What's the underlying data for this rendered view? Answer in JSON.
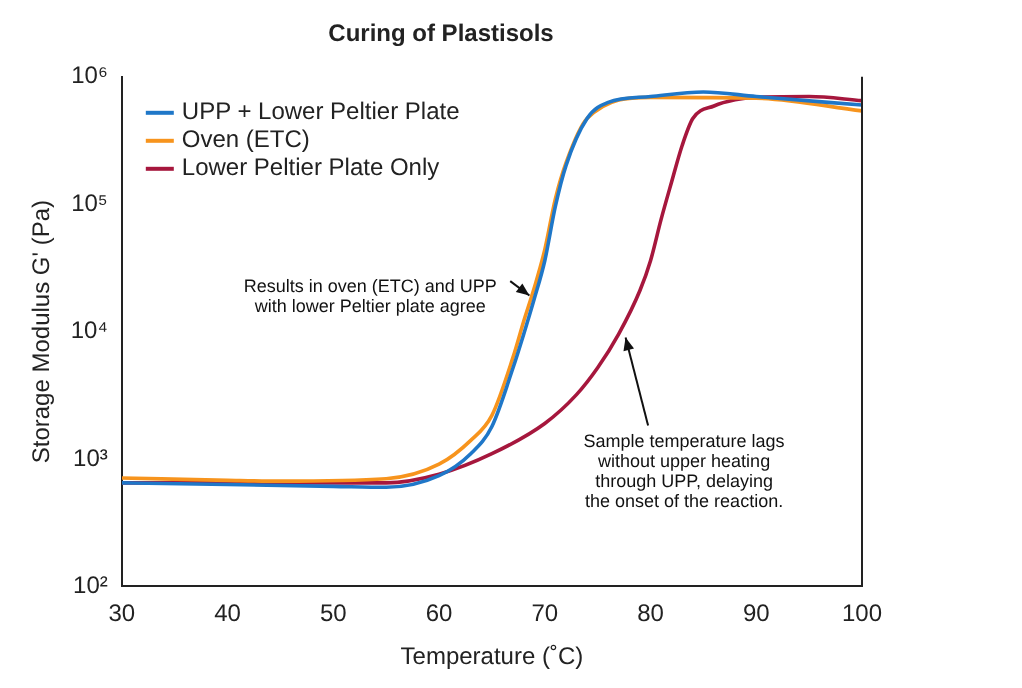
{
  "chart_data": {
    "type": "line",
    "title": "Curing of Plastisols",
    "xlabel": "Temperature (˚C)",
    "ylabel": "Storage Modulus G' (Pa)",
    "log": "y",
    "grid": false,
    "legend": "top left",
    "marker": "none",
    "line_style": "solid",
    "xlim": [
      30,
      100
    ],
    "xticks": [
      30,
      40,
      50,
      60,
      70,
      80,
      90,
      100
    ],
    "ylim": [
      100,
      1000000
    ],
    "yticks": [
      {
        "value": 100,
        "label": "10²"
      },
      {
        "value": 1000,
        "label": "10³"
      },
      {
        "value": 10000,
        "label": "10⁴"
      },
      {
        "value": 100000,
        "label": "10⁵"
      },
      {
        "value": 1000000,
        "label": "10⁶"
      }
    ],
    "series": [
      {
        "name": "UPP + Lower Peltier Plate",
        "color": "#1f77c8",
        "x": [
          30,
          40,
          50,
          55,
          60,
          63,
          65,
          67,
          68,
          69,
          70,
          71,
          72,
          74,
          76,
          80,
          85,
          90,
          100
        ],
        "values": [
          650,
          630,
          610,
          600,
          740,
          1100,
          1800,
          5200,
          9500,
          18000,
          36000,
          96000,
          200000,
          470000,
          630000,
          700000,
          760000,
          700000,
          600000
        ]
      },
      {
        "name": "Oven (ETC)",
        "color": "#f7941d",
        "x": [
          30,
          40,
          45,
          55,
          60,
          63,
          65,
          67,
          68,
          69,
          70,
          71,
          72,
          74,
          80,
          90,
          100
        ],
        "values": [
          710,
          680,
          670,
          700,
          910,
          1400,
          2200,
          6300,
          12000,
          22000,
          44000,
          110000,
          210000,
          470000,
          690000,
          680000,
          540000
        ]
      },
      {
        "name": "Lower Peltier Plate Only",
        "color": "#a6173d",
        "x": [
          30,
          40,
          50,
          55,
          60,
          65,
          70,
          73,
          75,
          77,
          79,
          80,
          81,
          82,
          83,
          84,
          86,
          88,
          90,
          95,
          100
        ],
        "values": [
          650,
          650,
          650,
          650,
          760,
          1100,
          1900,
          3200,
          5200,
          9600,
          21000,
          36000,
          76000,
          150000,
          290000,
          470000,
          590000,
          660000,
          690000,
          700000,
          650000
        ]
      }
    ],
    "annotations": [
      {
        "text": "Results in oven (ETC) and UPP\nwith lower Peltier plate agree",
        "x": 69,
        "y": 18000
      },
      {
        "text": "Sample temperature lags\nwithout upper heating\nthrough UPP, delaying\nthe onset of the reaction.",
        "x": 77.5,
        "y": 10000
      }
    ]
  }
}
